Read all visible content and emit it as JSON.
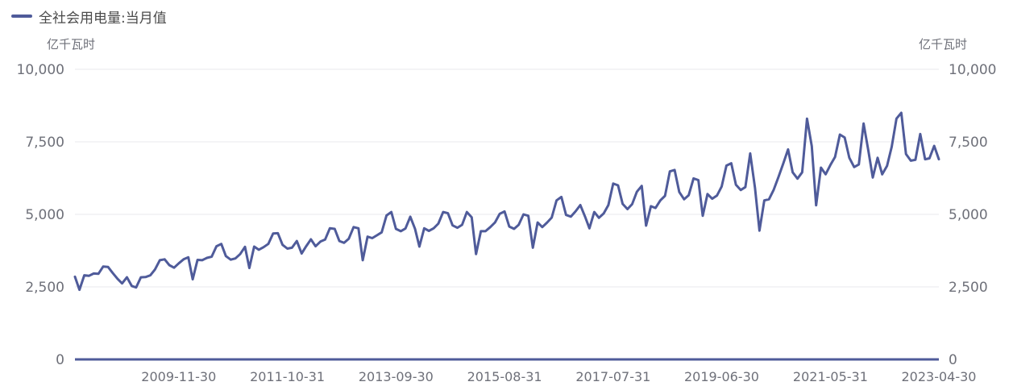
{
  "chart_data": {
    "type": "line",
    "legend": {
      "position": "top-left"
    },
    "y_unit_left": "亿千瓦时",
    "y_unit_right": "亿千瓦时",
    "ylim": [
      0,
      10000
    ],
    "yticks": [
      "0",
      "2,500",
      "5,000",
      "7,500",
      "10,000"
    ],
    "xtick_labels": [
      "2009-11-30",
      "2011-10-31",
      "2013-09-30",
      "2015-08-31",
      "2017-07-31",
      "2019-06-30",
      "2021-05-31",
      "2023-04-30"
    ],
    "xlim": [
      "2008-01-31",
      "2023-04-30"
    ],
    "grid": true,
    "colors": {
      "series": "#4f5b9a",
      "grid": "#e8e8ee",
      "axis": "#6e7079"
    },
    "series": [
      {
        "name": "全社会用电量:当月值",
        "start": "2008-01-31",
        "frequency": "monthly",
        "values": [
          2850,
          2400,
          2900,
          2880,
          2960,
          2950,
          3200,
          3190,
          2980,
          2780,
          2620,
          2830,
          2530,
          2480,
          2830,
          2840,
          2900,
          3100,
          3420,
          3450,
          3250,
          3160,
          3310,
          3450,
          3520,
          2760,
          3430,
          3420,
          3500,
          3540,
          3900,
          3980,
          3560,
          3440,
          3480,
          3630,
          3880,
          3150,
          3890,
          3780,
          3870,
          3980,
          4340,
          4350,
          3950,
          3820,
          3850,
          4080,
          3650,
          3900,
          4140,
          3900,
          4060,
          4130,
          4520,
          4500,
          4080,
          4020,
          4160,
          4560,
          4520,
          3420,
          4230,
          4180,
          4280,
          4380,
          4960,
          5080,
          4500,
          4420,
          4510,
          4920,
          4500,
          3890,
          4520,
          4430,
          4520,
          4680,
          5080,
          5040,
          4620,
          4540,
          4640,
          5080,
          4900,
          3630,
          4420,
          4420,
          4560,
          4720,
          5020,
          5100,
          4580,
          4500,
          4640,
          5000,
          4950,
          3850,
          4720,
          4560,
          4720,
          4890,
          5480,
          5600,
          4980,
          4920,
          5100,
          5320,
          4920,
          4520,
          5080,
          4880,
          5030,
          5320,
          6060,
          6000,
          5360,
          5180,
          5350,
          5780,
          5980,
          4610,
          5280,
          5220,
          5480,
          5640,
          6480,
          6530,
          5770,
          5520,
          5660,
          6240,
          6180,
          4950,
          5700,
          5540,
          5650,
          5960,
          6680,
          6760,
          6020,
          5840,
          5940,
          7100,
          5900,
          4440,
          5480,
          5520,
          5850,
          6280,
          6750,
          7240,
          6450,
          6230,
          6450,
          8300,
          7350,
          5310,
          6610,
          6380,
          6700,
          6980,
          7750,
          7650,
          6950,
          6630,
          6720,
          8130,
          7180,
          6270,
          6950,
          6380,
          6670,
          7330,
          8300,
          8500,
          7080,
          6850,
          6880,
          7770,
          6900,
          6930,
          7360,
          6900
        ]
      }
    ]
  }
}
